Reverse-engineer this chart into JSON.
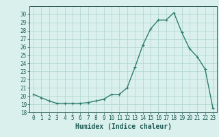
{
  "x": [
    0,
    1,
    2,
    3,
    4,
    5,
    6,
    7,
    8,
    9,
    10,
    11,
    12,
    13,
    14,
    15,
    16,
    17,
    18,
    19,
    20,
    21,
    22,
    23
  ],
  "y": [
    20.2,
    19.8,
    19.4,
    19.1,
    19.1,
    19.1,
    19.1,
    19.2,
    19.4,
    19.6,
    20.2,
    20.2,
    21.0,
    23.5,
    26.2,
    28.2,
    29.3,
    29.3,
    30.2,
    27.8,
    25.8,
    24.8,
    23.3,
    18.5
  ],
  "line_color": "#2e7d6e",
  "marker": "+",
  "markersize": 3,
  "linewidth": 1.0,
  "bg_color": "#daf0ed",
  "grid_color": "#aed4ce",
  "xlabel": "Humidex (Indice chaleur)",
  "xlim": [
    -0.5,
    23.5
  ],
  "ylim": [
    18,
    31
  ],
  "yticks": [
    18,
    19,
    20,
    21,
    22,
    23,
    24,
    25,
    26,
    27,
    28,
    29,
    30
  ],
  "xticks": [
    0,
    1,
    2,
    3,
    4,
    5,
    6,
    7,
    8,
    9,
    10,
    11,
    12,
    13,
    14,
    15,
    16,
    17,
    18,
    19,
    20,
    21,
    22,
    23
  ],
  "tick_fontsize": 5.5,
  "xlabel_fontsize": 7,
  "tick_color": "#1e5c54",
  "axis_color": "#2e5c54"
}
